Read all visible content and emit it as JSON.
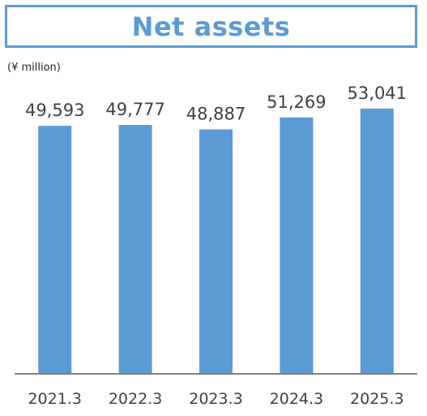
{
  "chart_data": {
    "type": "bar",
    "title": "Net assets",
    "unit_label": "(¥ million)",
    "categories": [
      "2021.3",
      "2022.3",
      "2023.3",
      "2024.3",
      "2025.3"
    ],
    "values": [
      49593,
      49777,
      48887,
      51269,
      53041
    ],
    "value_labels": [
      "49,593",
      "49,777",
      "48,887",
      "51,269",
      "53,041"
    ],
    "ylim": [
      0,
      60000
    ],
    "grid": false,
    "bar_color": "#5b9bd5",
    "axis_color": "#808080"
  }
}
